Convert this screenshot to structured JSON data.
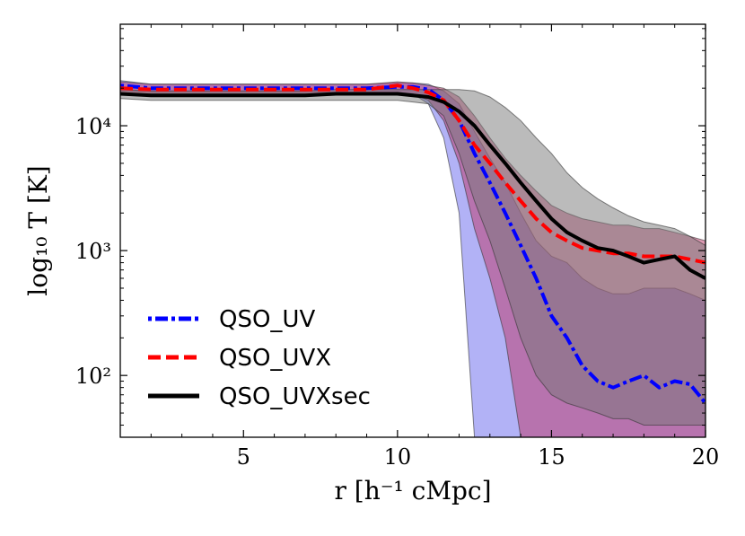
{
  "chart_data": {
    "type": "line",
    "xlabel": "r [h⁻¹ cMpc]",
    "ylabel": "log₁₀ T [K]",
    "xlim": [
      1,
      20
    ],
    "ylim": [
      32,
      65000
    ],
    "yscale": "log",
    "xticks": [
      5,
      10,
      15,
      20
    ],
    "xtick_labels": [
      "5",
      "10",
      "15",
      "20"
    ],
    "yticks": [
      100,
      1000,
      10000
    ],
    "ytick_labels": [
      "10²",
      "10³",
      "10⁴"
    ],
    "legend_position": "lower-left",
    "series": [
      {
        "name": "QSO_UV",
        "color": "#0000ff",
        "style": "dash-dot",
        "band_color": "#6666ee",
        "x": [
          1,
          2,
          3,
          4,
          5,
          6,
          7,
          8,
          9,
          10,
          10.5,
          11,
          11.5,
          12,
          12.5,
          13,
          13.5,
          14,
          14.5,
          15,
          15.5,
          16,
          16.5,
          17,
          17.5,
          18,
          18.5,
          19,
          19.5,
          20
        ],
        "values": [
          21000,
          20000,
          20000,
          20000,
          20000,
          20000,
          20000,
          20000,
          20000,
          20500,
          20500,
          19500,
          16000,
          11000,
          6000,
          3500,
          2000,
          1100,
          600,
          300,
          200,
          120,
          90,
          80,
          90,
          100,
          80,
          90,
          85,
          60
        ],
        "band_low": [
          19000,
          18500,
          18500,
          18500,
          18500,
          18500,
          18500,
          18500,
          18500,
          18500,
          18000,
          15000,
          8000,
          2000,
          32,
          32,
          32,
          32,
          32,
          32,
          32,
          32,
          32,
          32,
          32,
          32,
          32,
          32,
          32,
          32
        ],
        "band_high": [
          23000,
          21500,
          21500,
          21500,
          21500,
          21500,
          21500,
          21500,
          21500,
          22000,
          22000,
          21500,
          19000,
          15000,
          9000,
          5500,
          3500,
          2000,
          1200,
          900,
          800,
          600,
          500,
          450,
          450,
          500,
          500,
          500,
          450,
          400
        ]
      },
      {
        "name": "QSO_UVX",
        "color": "#ff0000",
        "style": "dashed",
        "band_color": "#bb3366",
        "x": [
          1,
          2,
          3,
          4,
          5,
          6,
          7,
          8,
          9,
          10,
          10.5,
          11,
          11.5,
          12,
          12.5,
          13,
          13.5,
          14,
          14.5,
          15,
          15.5,
          16,
          16.5,
          17,
          17.5,
          18,
          18.5,
          19,
          19.5,
          20
        ],
        "values": [
          20000,
          19500,
          19500,
          19500,
          19500,
          19500,
          19500,
          19500,
          19500,
          21000,
          20000,
          18500,
          16000,
          11000,
          7000,
          5000,
          3500,
          2500,
          1800,
          1400,
          1200,
          1050,
          1000,
          950,
          950,
          900,
          900,
          900,
          850,
          800
        ],
        "band_low": [
          18000,
          18000,
          18000,
          18000,
          18000,
          18000,
          18000,
          18000,
          18000,
          18500,
          18000,
          16000,
          11000,
          5000,
          1500,
          600,
          200,
          32,
          32,
          32,
          32,
          32,
          32,
          32,
          32,
          32,
          32,
          32,
          32,
          32
        ],
        "band_high": [
          22500,
          21500,
          21500,
          21500,
          21500,
          21500,
          21500,
          21500,
          21500,
          22500,
          22000,
          21000,
          20000,
          17000,
          12000,
          8000,
          5500,
          4000,
          3000,
          2300,
          2000,
          1800,
          1700,
          1600,
          1600,
          1500,
          1500,
          1400,
          1300,
          1200
        ]
      },
      {
        "name": "QSO_UVXsec",
        "color": "#000000",
        "style": "solid",
        "band_color": "#777777",
        "x": [
          1,
          2,
          3,
          4,
          5,
          6,
          7,
          8,
          9,
          10,
          10.5,
          11,
          11.5,
          12,
          12.5,
          13,
          13.5,
          14,
          14.5,
          15,
          15.5,
          16,
          16.5,
          17,
          17.5,
          18,
          18.5,
          19,
          19.5,
          20
        ],
        "values": [
          18000,
          17500,
          17500,
          17500,
          17500,
          17500,
          17500,
          18000,
          18000,
          18000,
          17500,
          17000,
          15500,
          13000,
          10000,
          7000,
          5000,
          3500,
          2500,
          1800,
          1400,
          1200,
          1050,
          1000,
          900,
          800,
          850,
          900,
          700,
          600
        ],
        "band_low": [
          16500,
          16000,
          16000,
          16000,
          16000,
          16000,
          16000,
          16000,
          16000,
          16000,
          15500,
          15000,
          12000,
          6000,
          2500,
          1200,
          500,
          200,
          100,
          70,
          60,
          55,
          50,
          45,
          45,
          40,
          40,
          40,
          40,
          40
        ],
        "band_high": [
          19500,
          19000,
          19000,
          19000,
          19000,
          19000,
          19000,
          19500,
          19500,
          19500,
          19500,
          19500,
          19500,
          19500,
          19000,
          17000,
          14000,
          11000,
          8000,
          6000,
          4200,
          3200,
          2600,
          2200,
          1900,
          1700,
          1600,
          1500,
          1300,
          1100
        ]
      }
    ]
  }
}
